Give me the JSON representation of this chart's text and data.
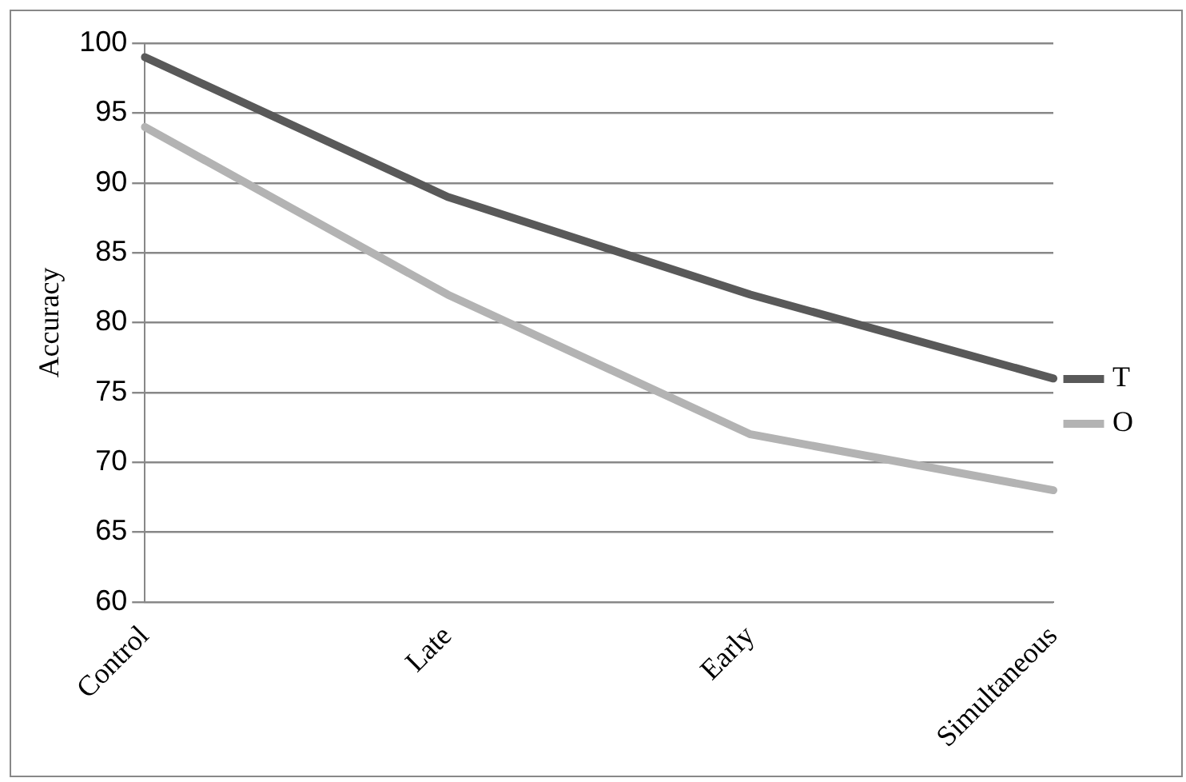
{
  "chart_data": {
    "type": "line",
    "ylabel": "Accuracy",
    "categories": [
      "Control",
      "Late",
      "Early",
      "Simultaneous"
    ],
    "series": [
      {
        "name": "T",
        "color": "#595959",
        "values": [
          99,
          89,
          82,
          76
        ]
      },
      {
        "name": "O",
        "color": "#b3b3b3",
        "values": [
          94,
          82,
          72,
          68
        ]
      }
    ],
    "ylim": [
      60,
      100
    ],
    "yticks": [
      60,
      65,
      70,
      75,
      80,
      85,
      90,
      95,
      100
    ],
    "grid": "y",
    "legend": "right",
    "marker": "none"
  }
}
